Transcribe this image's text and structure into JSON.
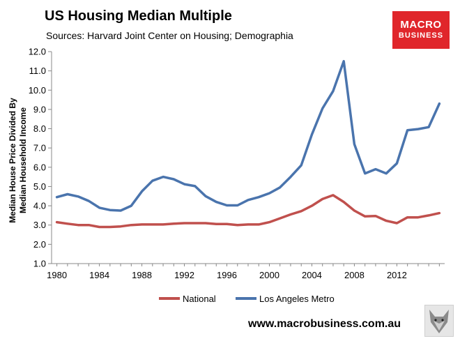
{
  "chart_data": {
    "type": "line",
    "title": "US Housing Median Multiple",
    "subtitle": "Sources: Harvard Joint Center on Housing; Demographia",
    "ylabel_line1": "Median House Price Divided By",
    "ylabel_line2": "Median Household Income",
    "xlabel": "",
    "x": [
      1980,
      1981,
      1982,
      1983,
      1984,
      1985,
      1986,
      1987,
      1988,
      1989,
      1990,
      1991,
      1992,
      1993,
      1994,
      1995,
      1996,
      1997,
      1998,
      1999,
      2000,
      2001,
      2002,
      2003,
      2004,
      2005,
      2006,
      2007,
      2008,
      2009,
      2010,
      2011,
      2012,
      2013,
      2014,
      2015,
      2016
    ],
    "xlim": [
      1979.5,
      2016.5
    ],
    "xticks": [
      1980,
      1984,
      1988,
      1992,
      1996,
      2000,
      2004,
      2008,
      2012
    ],
    "ylim": [
      1.0,
      12.0
    ],
    "yticks": [
      "1.0",
      "2.0",
      "3.0",
      "4.0",
      "5.0",
      "6.0",
      "7.0",
      "8.0",
      "9.0",
      "10.0",
      "11.0",
      "12.0"
    ],
    "grid": false,
    "legend_position": "bottom",
    "series": [
      {
        "name": "National",
        "color": "#c0504d",
        "values": [
          3.15,
          3.07,
          3.0,
          3.0,
          2.9,
          2.9,
          2.93,
          3.0,
          3.03,
          3.03,
          3.03,
          3.07,
          3.1,
          3.1,
          3.1,
          3.05,
          3.05,
          3.0,
          3.03,
          3.03,
          3.15,
          3.35,
          3.55,
          3.72,
          4.0,
          4.35,
          4.55,
          4.2,
          3.75,
          3.45,
          3.47,
          3.22,
          3.1,
          3.4,
          3.4,
          3.5,
          3.62
        ]
      },
      {
        "name": "Los Angeles Metro",
        "color": "#4a74ad",
        "values": [
          4.45,
          4.6,
          4.48,
          4.25,
          3.9,
          3.78,
          3.75,
          4.0,
          4.75,
          5.3,
          5.5,
          5.38,
          5.12,
          5.02,
          4.5,
          4.2,
          4.02,
          4.02,
          4.3,
          4.45,
          4.65,
          4.95,
          5.5,
          6.1,
          7.7,
          9.05,
          9.95,
          11.5,
          7.2,
          5.68,
          5.9,
          5.68,
          6.2,
          7.92,
          7.98,
          8.08,
          9.3
        ]
      }
    ]
  },
  "logo": {
    "line1": "MACRO",
    "line2": "BUSINESS"
  },
  "website": "www.macrobusiness.com.au",
  "fox_image": "fox-icon"
}
